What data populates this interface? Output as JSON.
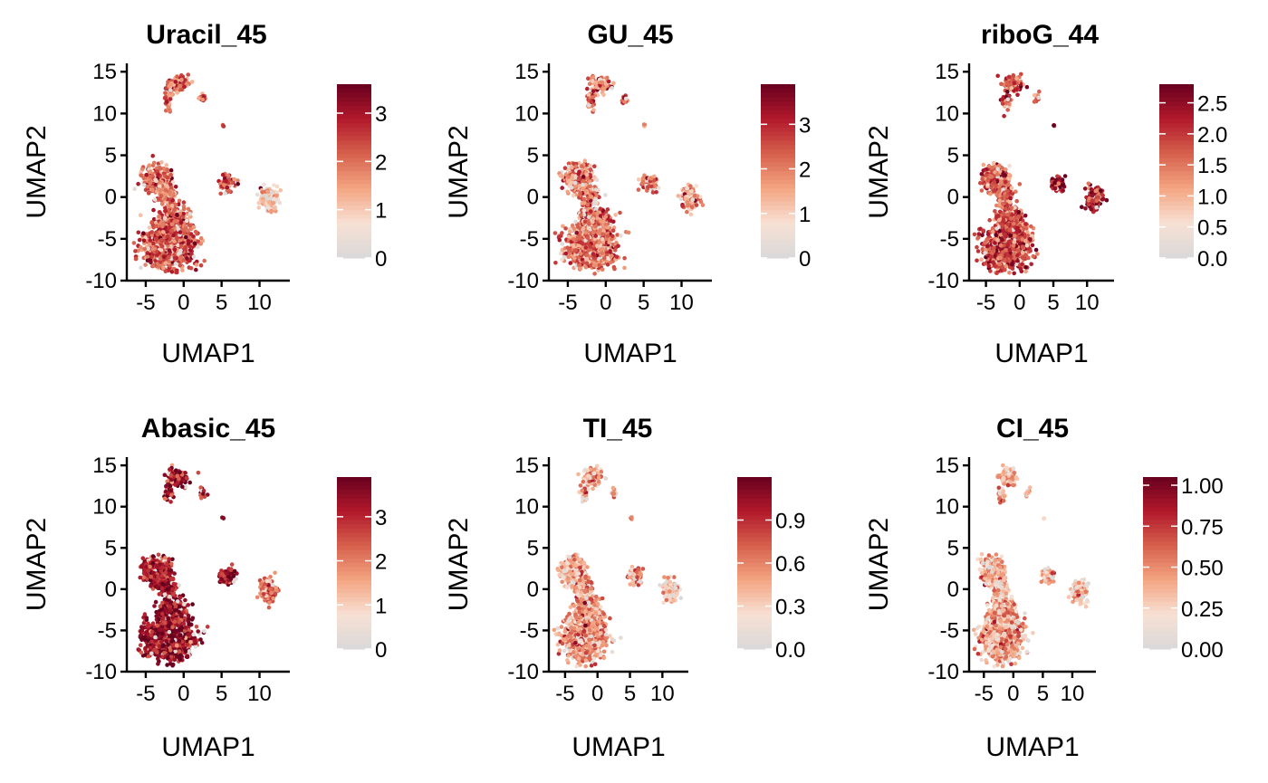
{
  "chart_data": [
    {
      "type": "scatter",
      "title": "Uracil_45",
      "xlabel": "UMAP1",
      "ylabel": "UMAP2",
      "xlim": [
        -7.5,
        14
      ],
      "ylim": [
        -10,
        16
      ],
      "xticks": [
        "-5",
        "0",
        "5",
        "10"
      ],
      "yticks": [
        "-10",
        "-5",
        "0",
        "5",
        "10",
        "15"
      ],
      "colorbar": {
        "min": 0,
        "max": 3.6,
        "ticks": [
          "0",
          "1",
          "2",
          "3"
        ],
        "tick_values": [
          0,
          1,
          2,
          3
        ]
      },
      "intensity": {
        "big": 0.62,
        "up": 0.55,
        "mid": 0.62,
        "right": 0.22,
        "top": 0.58
      },
      "legend_position": "right"
    },
    {
      "type": "scatter",
      "title": "GU_45",
      "xlabel": "UMAP1",
      "ylabel": "UMAP2",
      "xlim": [
        -7.5,
        14
      ],
      "ylim": [
        -10,
        16
      ],
      "xticks": [
        "-5",
        "0",
        "5",
        "10"
      ],
      "yticks": [
        "-10",
        "-5",
        "0",
        "5",
        "10",
        "15"
      ],
      "colorbar": {
        "min": 0,
        "max": 3.9,
        "ticks": [
          "0",
          "1",
          "2",
          "3"
        ],
        "tick_values": [
          0,
          1,
          2,
          3
        ]
      },
      "intensity": {
        "big": 0.55,
        "up": 0.5,
        "mid": 0.55,
        "right": 0.45,
        "top": 0.5
      },
      "legend_position": "right"
    },
    {
      "type": "scatter",
      "title": "riboG_44",
      "xlabel": "UMAP1",
      "ylabel": "UMAP2",
      "xlim": [
        -7.5,
        14
      ],
      "ylim": [
        -10,
        16
      ],
      "xticks": [
        "-5",
        "0",
        "5",
        "10"
      ],
      "yticks": [
        "-10",
        "-5",
        "0",
        "5",
        "10",
        "15"
      ],
      "colorbar": {
        "min": 0,
        "max": 2.8,
        "ticks": [
          "0.0",
          "0.5",
          "1.0",
          "1.5",
          "2.0",
          "2.5"
        ],
        "tick_values": [
          0,
          0.5,
          1.0,
          1.5,
          2.0,
          2.5
        ]
      },
      "intensity": {
        "big": 0.68,
        "up": 0.6,
        "mid": 0.85,
        "right": 0.78,
        "top": 0.62
      },
      "legend_position": "right"
    },
    {
      "type": "scatter",
      "title": "Abasic_45",
      "xlabel": "UMAP1",
      "ylabel": "UMAP2",
      "xlim": [
        -7.5,
        14
      ],
      "ylim": [
        -10,
        16
      ],
      "xticks": [
        "-5",
        "0",
        "5",
        "10"
      ],
      "yticks": [
        "-10",
        "-5",
        "0",
        "5",
        "10",
        "15"
      ],
      "colorbar": {
        "min": 0,
        "max": 3.9,
        "ticks": [
          "0",
          "1",
          "2",
          "3"
        ],
        "tick_values": [
          0,
          1,
          2,
          3
        ]
      },
      "intensity": {
        "big": 0.88,
        "up": 0.82,
        "mid": 0.85,
        "right": 0.55,
        "top": 0.82
      },
      "legend_position": "right"
    },
    {
      "type": "scatter",
      "title": "TI_45",
      "xlabel": "UMAP1",
      "ylabel": "UMAP2",
      "xlim": [
        -7.5,
        14
      ],
      "ylim": [
        -10,
        16
      ],
      "xticks": [
        "-5",
        "0",
        "5",
        "10"
      ],
      "yticks": [
        "-10",
        "-5",
        "0",
        "5",
        "10",
        "15"
      ],
      "colorbar": {
        "min": 0,
        "max": 1.2,
        "ticks": [
          "0.0",
          "0.3",
          "0.6",
          "0.9"
        ],
        "tick_values": [
          0,
          0.3,
          0.6,
          0.9
        ]
      },
      "intensity": {
        "big": 0.45,
        "up": 0.38,
        "mid": 0.42,
        "right": 0.32,
        "top": 0.38
      },
      "legend_position": "right"
    },
    {
      "type": "scatter",
      "title": "CI_45",
      "xlabel": "UMAP1",
      "ylabel": "UMAP2",
      "xlim": [
        -7.5,
        14
      ],
      "ylim": [
        -10,
        16
      ],
      "xticks": [
        "-5",
        "0",
        "5",
        "10"
      ],
      "yticks": [
        "-10",
        "-5",
        "0",
        "5",
        "10",
        "15"
      ],
      "colorbar": {
        "min": 0,
        "max": 1.05,
        "ticks": [
          "0.00",
          "0.25",
          "0.50",
          "0.75",
          "1.00"
        ],
        "tick_values": [
          0,
          0.25,
          0.5,
          0.75,
          1.0
        ]
      },
      "intensity": {
        "big": 0.42,
        "up": 0.32,
        "mid": 0.38,
        "right": 0.3,
        "top": 0.36
      },
      "legend_position": "right"
    }
  ],
  "colors": {
    "low": "#d9d9d9",
    "scale": [
      "#d9d9d9",
      "#f7e0d4",
      "#f4a582",
      "#d6604d",
      "#b2182b",
      "#67001f"
    ]
  }
}
